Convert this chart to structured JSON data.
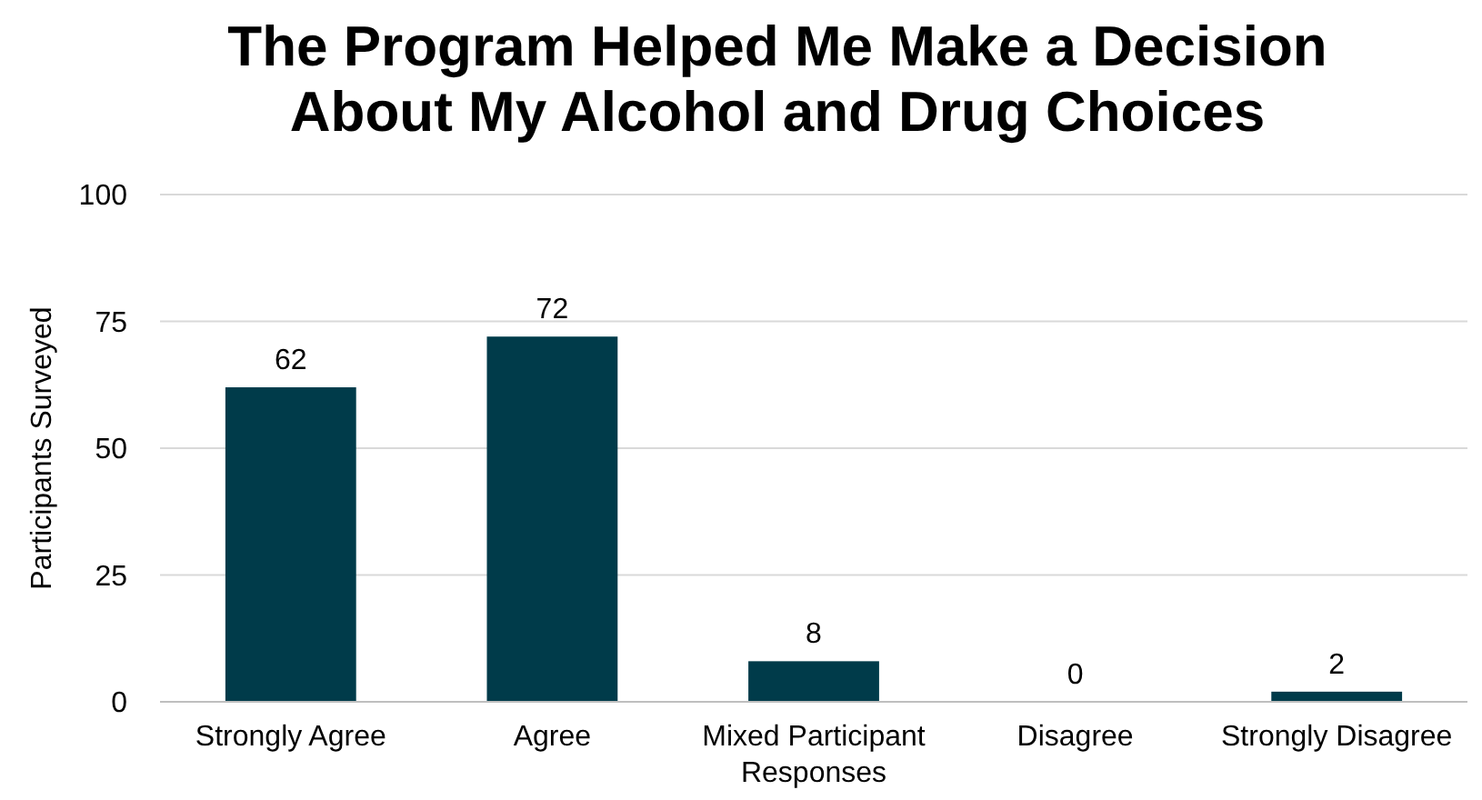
{
  "chart_data": {
    "type": "bar",
    "title": "The Program Helped Me Make a Decision About My Alcohol and Drug Choices",
    "ylabel": "Participants Surveyed",
    "categories": [
      "Strongly Agree",
      "Agree",
      "Mixed Participant Responses",
      "Disagree",
      "Strongly Disagree"
    ],
    "values": [
      62,
      72,
      8,
      0,
      2
    ],
    "color": "#003b4a",
    "ylim": [
      0,
      100
    ],
    "yticks": [
      0,
      25,
      50,
      75,
      100
    ],
    "grid": "y",
    "data_labels": true
  }
}
